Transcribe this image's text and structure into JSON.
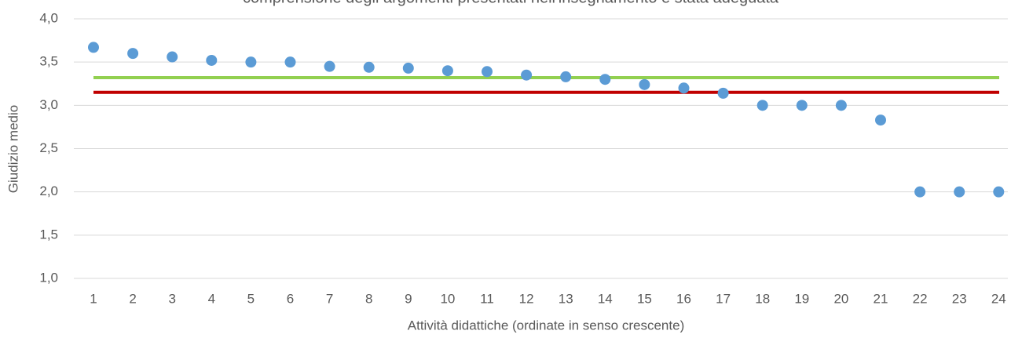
{
  "chart_data": {
    "type": "scatter",
    "title": "comprensione degli argomenti presentati nell'insegnamento è stata adeguata",
    "x_label": "Attività didattiche (ordinate in senso crescente)",
    "y_label": "Giudizio medio",
    "categories": [
      "1",
      "2",
      "3",
      "4",
      "5",
      "6",
      "7",
      "8",
      "9",
      "10",
      "11",
      "12",
      "13",
      "14",
      "15",
      "16",
      "17",
      "18",
      "19",
      "20",
      "21",
      "22",
      "23",
      "24"
    ],
    "values": [
      3.67,
      3.6,
      3.56,
      3.52,
      3.5,
      3.5,
      3.45,
      3.44,
      3.43,
      3.4,
      3.39,
      3.35,
      3.33,
      3.3,
      3.24,
      3.2,
      3.14,
      3.0,
      3.0,
      3.0,
      2.83,
      2.0,
      2.0,
      2.0
    ],
    "color": "#5b9bd5",
    "reference_lines": [
      {
        "value": 3.32,
        "color": "#92d050"
      },
      {
        "value": 3.15,
        "color": "#c00000"
      }
    ],
    "ylim": [
      1,
      4
    ],
    "yticks": [
      {
        "value": 1,
        "label": "1,0"
      },
      {
        "value": 1.5,
        "label": "1,5"
      },
      {
        "value": 2,
        "label": "2,0"
      },
      {
        "value": 2.5,
        "label": "2,5"
      },
      {
        "value": 3,
        "label": "3,0"
      },
      {
        "value": 3.5,
        "label": "3,5"
      },
      {
        "value": 4,
        "label": "4,0"
      }
    ],
    "grid": true
  }
}
